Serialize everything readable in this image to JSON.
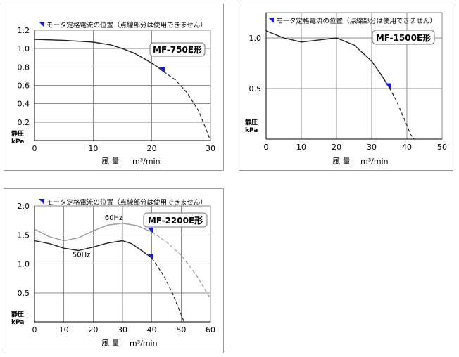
{
  "legend_note": "モータ定格電流の位置（点線部分は使用できません）",
  "colors": {
    "marker": "#1a1ad6",
    "main_curve": "#222222",
    "light_curve": "#9a9a9a"
  },
  "chart_data": [
    {
      "type": "line",
      "model": "MF-750E形",
      "xlabel": "風 量",
      "xunit": "m³/min",
      "ylabel": "静圧",
      "yunit": "kPa",
      "xlim": [
        0,
        30
      ],
      "ylim": [
        0,
        1.2
      ],
      "xticks": [
        0,
        10,
        20,
        30
      ],
      "yticks": [
        0.2,
        0.4,
        0.6,
        0.8,
        1.0,
        1.2
      ],
      "ytick_labels": [
        "0.2",
        "0.4",
        "0.6",
        "0.8",
        "1.0",
        "1.2"
      ],
      "series": [
        {
          "color": "main_curve",
          "solid": [
            [
              0,
              1.1
            ],
            [
              5,
              1.09
            ],
            [
              10,
              1.07
            ],
            [
              13,
              1.04
            ],
            [
              15,
              1.0
            ],
            [
              17,
              0.95
            ],
            [
              19,
              0.88
            ],
            [
              21,
              0.8
            ],
            [
              22,
              0.75
            ]
          ],
          "dashed": [
            [
              22,
              0.75
            ],
            [
              24,
              0.66
            ],
            [
              26,
              0.52
            ],
            [
              28,
              0.32
            ],
            [
              30,
              0.0
            ]
          ],
          "marker": [
            22,
            0.75
          ]
        }
      ]
    },
    {
      "type": "line",
      "model": "MF-1500E形",
      "xlabel": "風 量",
      "xunit": "m³/min",
      "ylabel": "静圧",
      "yunit": "kPa",
      "xlim": [
        0,
        50
      ],
      "ylim": [
        0,
        1.25
      ],
      "xticks": [
        0,
        10,
        20,
        30,
        40,
        50
      ],
      "yticks": [
        0.5,
        1.0
      ],
      "ytick_labels": [
        "0.5",
        "1.0"
      ],
      "series": [
        {
          "color": "main_curve",
          "solid": [
            [
              0,
              1.07
            ],
            [
              5,
              1.0
            ],
            [
              10,
              0.96
            ],
            [
              15,
              0.98
            ],
            [
              20,
              1.0
            ],
            [
              25,
              0.93
            ],
            [
              30,
              0.77
            ],
            [
              33,
              0.62
            ],
            [
              35,
              0.51
            ]
          ],
          "dashed": [
            [
              35,
              0.51
            ],
            [
              37,
              0.38
            ],
            [
              39,
              0.22
            ],
            [
              41,
              0.05
            ],
            [
              42,
              0.0
            ]
          ],
          "marker": [
            35,
            0.51
          ]
        }
      ]
    },
    {
      "type": "line",
      "model": "MF-2200E形",
      "xlabel": "風 量",
      "xunit": "m³/min",
      "ylabel": "静圧",
      "yunit": "kPa",
      "xlim": [
        0,
        60
      ],
      "ylim": [
        0,
        2.0
      ],
      "xticks": [
        0,
        10,
        20,
        30,
        40,
        50,
        60
      ],
      "yticks": [
        0.5,
        1.0,
        1.5,
        2.0
      ],
      "ytick_labels": [
        "0.5",
        "1.0",
        "1.5",
        "2.0"
      ],
      "series": [
        {
          "name": "60Hz",
          "color": "light_curve",
          "solid": [
            [
              0,
              1.6
            ],
            [
              5,
              1.47
            ],
            [
              10,
              1.4
            ],
            [
              15,
              1.45
            ],
            [
              20,
              1.57
            ],
            [
              25,
              1.67
            ],
            [
              30,
              1.7
            ],
            [
              35,
              1.66
            ],
            [
              40,
              1.55
            ]
          ],
          "dashed": [
            [
              40,
              1.55
            ],
            [
              45,
              1.38
            ],
            [
              50,
              1.15
            ],
            [
              55,
              0.82
            ],
            [
              60,
              0.4
            ]
          ],
          "marker": [
            40,
            1.55
          ],
          "label_at": [
            27,
            1.76
          ]
        },
        {
          "name": "50Hz",
          "color": "main_curve",
          "solid": [
            [
              0,
              1.4
            ],
            [
              5,
              1.35
            ],
            [
              10,
              1.27
            ],
            [
              15,
              1.23
            ],
            [
              20,
              1.29
            ],
            [
              25,
              1.36
            ],
            [
              30,
              1.4
            ],
            [
              33,
              1.35
            ],
            [
              36,
              1.25
            ],
            [
              40,
              1.1
            ]
          ],
          "dashed": [
            [
              40,
              1.1
            ],
            [
              44,
              0.8
            ],
            [
              47,
              0.5
            ],
            [
              49,
              0.25
            ],
            [
              51,
              0.0
            ]
          ],
          "marker": [
            40,
            1.1
          ],
          "label_at": [
            16,
            1.12
          ]
        }
      ]
    }
  ]
}
